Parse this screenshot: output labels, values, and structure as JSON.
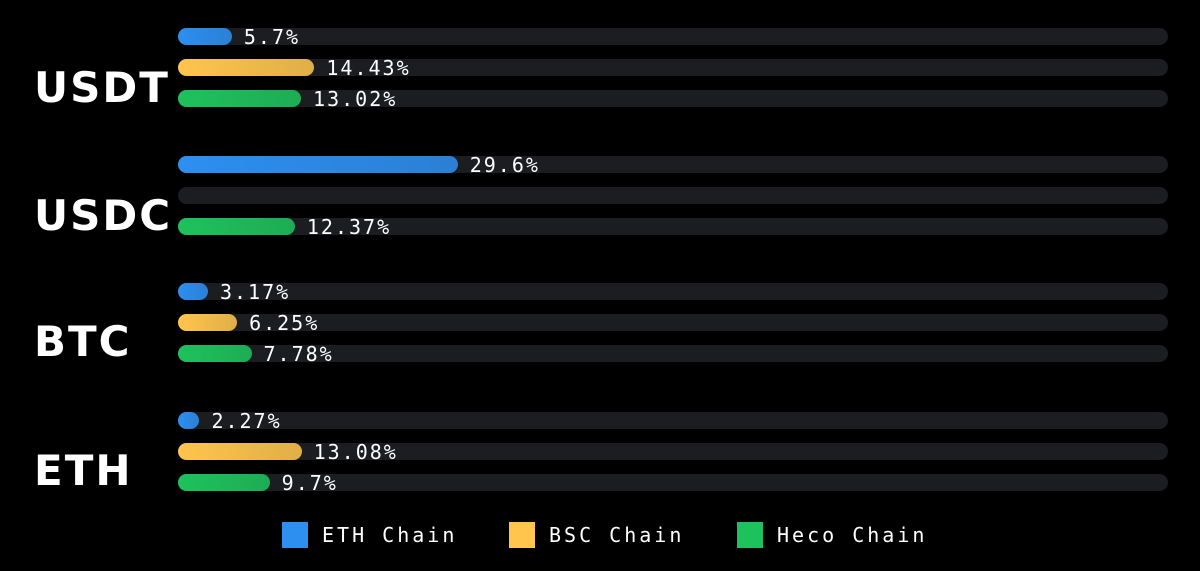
{
  "chart_data": {
    "type": "bar",
    "orientation": "horizontal",
    "categories": [
      "USDT",
      "USDC",
      "BTC",
      "ETH"
    ],
    "series": [
      {
        "name": "ETH Chain",
        "color": "#2d8ff0",
        "values": [
          5.7,
          29.6,
          3.17,
          2.27
        ],
        "labels": [
          "5.7%",
          "29.6%",
          "3.17%",
          "2.27%"
        ]
      },
      {
        "name": "BSC Chain",
        "color": "#ffc54d",
        "values": [
          14.43,
          null,
          6.25,
          13.08
        ],
        "labels": [
          "14.43%",
          "",
          "6.25%",
          "13.08%"
        ]
      },
      {
        "name": "Heco Chain",
        "color": "#1ec25c",
        "values": [
          13.02,
          12.37,
          7.78,
          9.7
        ],
        "labels": [
          "13.02%",
          "12.37%",
          "7.78%",
          "9.7%"
        ]
      }
    ],
    "xlim": [
      0,
      100
    ],
    "grid": false,
    "legend_position": "bottom"
  }
}
